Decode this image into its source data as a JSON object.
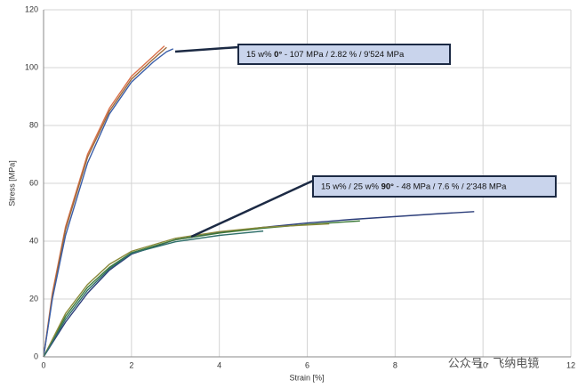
{
  "chart_data": {
    "type": "line",
    "x_label": "Strain [%]",
    "y_label": "Stress [MPa]",
    "xlim": [
      0,
      12
    ],
    "xticks": [
      0,
      2,
      4,
      6,
      8,
      10,
      12
    ],
    "ylim": [
      0,
      120
    ],
    "yticks": [
      0,
      20,
      40,
      60,
      80,
      100,
      120
    ],
    "grid": true,
    "series": [
      {
        "color": "#d9704a",
        "x": [
          0,
          0.2,
          0.5,
          1,
          1.5,
          2,
          2.5,
          2.75
        ],
        "values": [
          0,
          22,
          45,
          70,
          86,
          97,
          104,
          107.5
        ]
      },
      {
        "color": "#9b6a3a",
        "x": [
          0,
          0.2,
          0.5,
          1,
          1.5,
          2,
          2.5,
          2.8
        ],
        "values": [
          0,
          21,
          44,
          69,
          85,
          96,
          103,
          107
        ]
      },
      {
        "color": "#3a5ea8",
        "x": [
          0,
          0.2,
          0.5,
          1,
          1.5,
          2,
          2.5,
          2.8,
          2.95
        ],
        "values": [
          0,
          20,
          42,
          67,
          84,
          95,
          102,
          105.5,
          106.5
        ]
      },
      {
        "color": "#2c3e7a",
        "x": [
          0,
          0.5,
          1,
          1.5,
          2,
          3,
          4,
          5,
          6,
          7,
          8,
          9,
          9.8
        ],
        "values": [
          0,
          12,
          22,
          30,
          35.5,
          40.5,
          43,
          44.8,
          46.3,
          47.5,
          48.5,
          49.5,
          50.2
        ]
      },
      {
        "color": "#3d7a3a",
        "x": [
          0,
          0.5,
          1,
          1.5,
          2,
          3,
          4,
          5,
          6,
          7.2
        ],
        "values": [
          0,
          14,
          24,
          31,
          36,
          40.5,
          42.8,
          44.5,
          45.8,
          47
        ]
      },
      {
        "color": "#8a8a3a",
        "x": [
          0,
          0.5,
          1,
          1.5,
          2,
          3,
          4,
          5,
          6.5
        ],
        "values": [
          0,
          15,
          25,
          32,
          36.5,
          41,
          43.3,
          44.8,
          46
        ]
      },
      {
        "color": "#2f6f6a",
        "x": [
          0,
          0.5,
          1,
          1.5,
          2,
          3,
          4,
          5
        ],
        "values": [
          0,
          13,
          23,
          30.5,
          35.8,
          39.8,
          42,
          43.5
        ]
      }
    ],
    "annotations": [
      {
        "parts": [
          "15 w% ",
          "0°",
          " - 107 MPa / 2.82 % / 9'524 MPa"
        ]
      },
      {
        "parts": [
          "15 w% / 25 w% ",
          "90°",
          " - 48 MPa / 7.6 % / 2'348 MPa"
        ]
      }
    ],
    "watermark": "公众号 · 飞纳电镜"
  }
}
